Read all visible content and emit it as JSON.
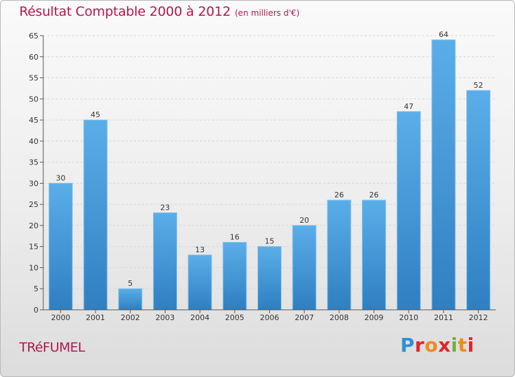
{
  "header": {
    "title": "Résultat Comptable 2000 à 2012",
    "subtitle": "(en milliers d'€)"
  },
  "footer": {
    "place_name": "TRéFUMEL",
    "logo_text": "Proxiti"
  },
  "colors": {
    "title": "#b5174c",
    "bar_top": "#5aaee8",
    "bar_bottom": "#2f7fc1",
    "logo": [
      "#f08a1c",
      "#2d8fd5",
      "#6db33f",
      "#e0242d"
    ]
  },
  "chart_data": {
    "type": "bar",
    "title": "Résultat Comptable 2000 à 2012",
    "subtitle": "(en milliers d'€)",
    "categories": [
      "2000",
      "2001",
      "2002",
      "2003",
      "2004",
      "2005",
      "2006",
      "2007",
      "2008",
      "2009",
      "2010",
      "2011",
      "2012"
    ],
    "values": [
      30,
      45,
      5,
      23,
      13,
      16,
      15,
      20,
      26,
      26,
      47,
      64,
      52
    ],
    "ylim": [
      0,
      65
    ],
    "yticks": [
      0,
      5,
      10,
      15,
      20,
      25,
      30,
      35,
      40,
      45,
      50,
      55,
      60,
      65
    ],
    "grid": true,
    "data_labels": true
  }
}
